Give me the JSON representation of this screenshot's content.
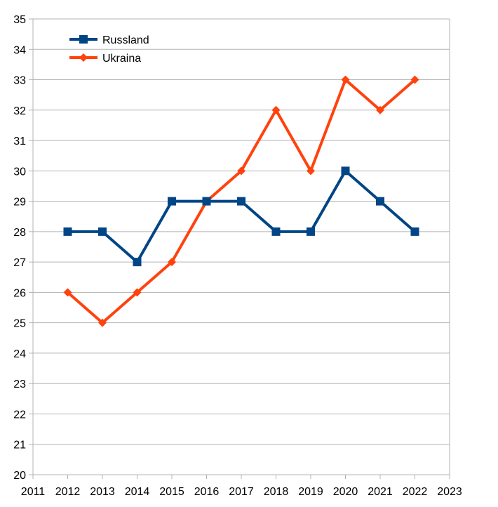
{
  "chart_data": {
    "type": "line",
    "title": "",
    "xlabel": "",
    "ylabel": "",
    "x": [
      2012,
      2013,
      2014,
      2015,
      2016,
      2017,
      2018,
      2019,
      2020,
      2021,
      2022
    ],
    "xlim": [
      2011,
      2023
    ],
    "ylim": [
      20,
      35
    ],
    "x_ticks": [
      2011,
      2012,
      2013,
      2014,
      2015,
      2016,
      2017,
      2018,
      2019,
      2020,
      2021,
      2022,
      2023
    ],
    "y_ticks": [
      20,
      21,
      22,
      23,
      24,
      25,
      26,
      27,
      28,
      29,
      30,
      31,
      32,
      33,
      34,
      35
    ],
    "grid": "horizontal",
    "legend_position": "top-left",
    "series": [
      {
        "name": "Russland",
        "color": "#004586",
        "marker": "square",
        "values": [
          28,
          28,
          27,
          29,
          29,
          29,
          28,
          28,
          30,
          29,
          28
        ]
      },
      {
        "name": "Ukraina",
        "color": "#ff420e",
        "marker": "diamond",
        "values": [
          26,
          25,
          26,
          27,
          29,
          30,
          32,
          30,
          33,
          32,
          33
        ]
      }
    ]
  }
}
